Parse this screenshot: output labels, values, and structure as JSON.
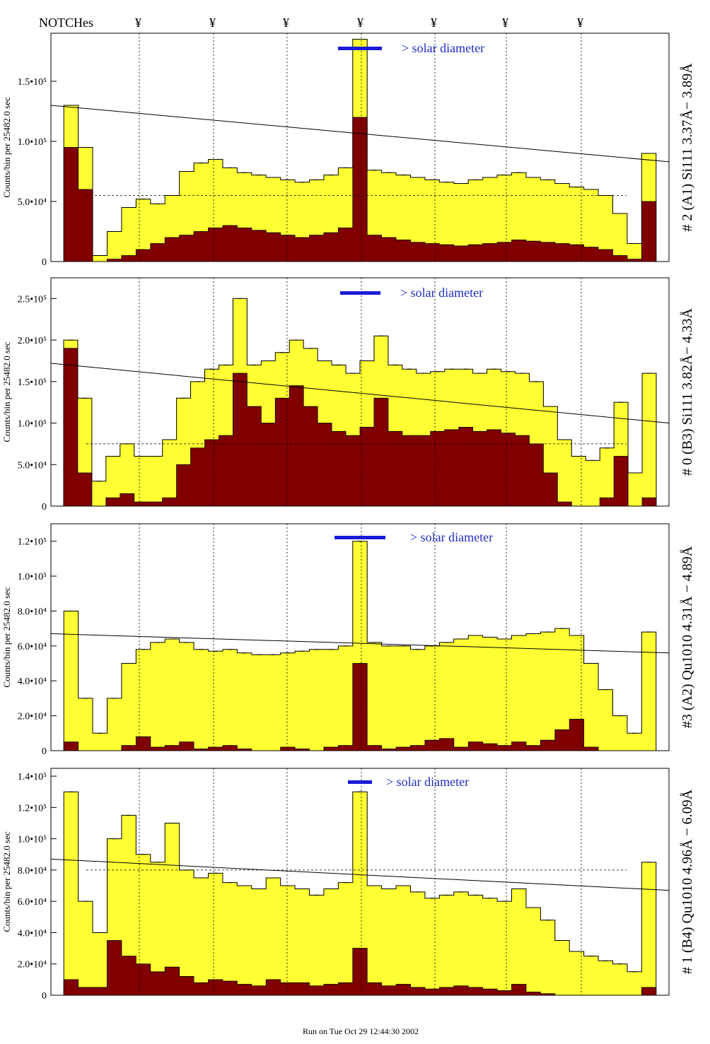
{
  "header": {
    "notch_label": "NOTCHes",
    "notch_symbol": "¥"
  },
  "footer": {
    "run_text": "Run on Tue Oct 29 12:44:30 2002"
  },
  "colors": {
    "fill": "#ffff33",
    "dark": "#800000",
    "blue": "#1a1adc"
  },
  "chart_data": [
    {
      "type": "area",
      "title": "# 2 (A1) Si111  3.37Å− 3.89Å",
      "ylabel": "Counts/bin per  25482.0 sec",
      "legend_text": "> solar diameter",
      "ylim": [
        0,
        190000
      ],
      "yticks": [
        0,
        50000,
        100000,
        150000
      ],
      "ytick_labels": [
        "0",
        "5.0•10⁴",
        "1.0•10⁵",
        "1.5•10⁵"
      ],
      "ref_line": [
        130000,
        83000
      ],
      "dashed_level": 55000,
      "series": [
        {
          "name": "total",
          "values": [
            0,
            130000,
            95000,
            5000,
            25000,
            45000,
            52000,
            48000,
            55000,
            75000,
            82000,
            85000,
            78000,
            74000,
            72000,
            70000,
            68000,
            66000,
            68000,
            72000,
            78000,
            185000,
            76000,
            74000,
            72000,
            70000,
            68000,
            66000,
            65000,
            68000,
            70000,
            72000,
            74000,
            70000,
            68000,
            65000,
            62000,
            60000,
            55000,
            40000,
            15000,
            90000,
            0
          ]
        },
        {
          "name": "masked",
          "values": [
            0,
            95000,
            60000,
            0,
            2000,
            5000,
            10000,
            15000,
            20000,
            22000,
            25000,
            28000,
            30000,
            28000,
            26000,
            24000,
            22000,
            20000,
            22000,
            24000,
            28000,
            120000,
            22000,
            20000,
            18000,
            16000,
            15000,
            14000,
            13000,
            14000,
            15000,
            16000,
            18000,
            17000,
            16000,
            15000,
            14000,
            12000,
            10000,
            5000,
            2000,
            50000,
            0
          ]
        }
      ]
    },
    {
      "type": "area",
      "title": "# 0 (B3) Si111  3.82Å− 4.33Å",
      "ylabel": "Counts/bin per  25482.0 sec",
      "legend_text": "> solar diameter",
      "ylim": [
        0,
        275000
      ],
      "yticks": [
        0,
        50000,
        100000,
        150000,
        200000,
        250000
      ],
      "ytick_labels": [
        "0",
        "5.0•10⁴",
        "1.0•10⁵",
        "1.5•10⁵",
        "2.0•10⁵",
        "2.5•10⁵"
      ],
      "ref_line": [
        172000,
        100000
      ],
      "dashed_level": 75000,
      "series": [
        {
          "name": "total",
          "values": [
            0,
            200000,
            130000,
            30000,
            60000,
            75000,
            60000,
            60000,
            80000,
            130000,
            150000,
            165000,
            170000,
            250000,
            170000,
            175000,
            185000,
            200000,
            190000,
            175000,
            170000,
            160000,
            175000,
            205000,
            170000,
            165000,
            160000,
            162000,
            165000,
            165000,
            160000,
            165000,
            162000,
            160000,
            150000,
            120000,
            80000,
            60000,
            55000,
            70000,
            125000,
            40000,
            160000,
            0
          ]
        },
        {
          "name": "masked",
          "values": [
            0,
            190000,
            40000,
            0,
            10000,
            15000,
            5000,
            5000,
            10000,
            50000,
            70000,
            80000,
            85000,
            160000,
            120000,
            100000,
            130000,
            145000,
            120000,
            100000,
            90000,
            85000,
            95000,
            130000,
            90000,
            85000,
            85000,
            90000,
            92000,
            95000,
            90000,
            92000,
            88000,
            85000,
            75000,
            40000,
            5000,
            0,
            0,
            10000,
            60000,
            0,
            10000,
            0
          ]
        }
      ]
    },
    {
      "type": "area",
      "title": "#3 (A2) Qu1010  4.31Å − 4.89Å",
      "ylabel": "Counts/bin per  25482.0 sec",
      "legend_text": "> solar diameter",
      "ylim": [
        0,
        130000
      ],
      "yticks": [
        0,
        20000,
        40000,
        60000,
        80000,
        100000,
        120000
      ],
      "ytick_labels": [
        "0",
        "2.0•10⁴",
        "4.0•10⁴",
        "6.0•10⁴",
        "8.0•10⁴",
        "1.0•10⁵",
        "1.2•10⁵"
      ],
      "ref_line": [
        67000,
        56000
      ],
      "dashed_level": 0,
      "series": [
        {
          "name": "total",
          "values": [
            0,
            80000,
            30000,
            10000,
            30000,
            50000,
            58000,
            62000,
            64000,
            62000,
            58000,
            57000,
            58000,
            56000,
            55000,
            55000,
            56000,
            57000,
            58000,
            58000,
            60000,
            120000,
            62000,
            60000,
            60000,
            58000,
            60000,
            62000,
            64000,
            66000,
            65000,
            64000,
            66000,
            67000,
            68000,
            70000,
            66000,
            50000,
            35000,
            20000,
            10000,
            68000,
            0
          ]
        },
        {
          "name": "masked",
          "values": [
            0,
            5000,
            0,
            0,
            0,
            3000,
            8000,
            2000,
            3000,
            5000,
            1000,
            2000,
            3000,
            1000,
            0,
            0,
            2000,
            1000,
            0,
            2000,
            3000,
            50000,
            3000,
            1000,
            2000,
            3000,
            6000,
            7000,
            2000,
            5000,
            4000,
            3000,
            5000,
            3000,
            6000,
            12000,
            18000,
            2000,
            0,
            0,
            0,
            0,
            0
          ]
        }
      ]
    },
    {
      "type": "area",
      "title": "# 1 (B4) Qu1010 4.96Å − 6.09Å",
      "ylabel": "Counts/bin per  25482.0 sec",
      "legend_text": "> solar diameter",
      "ylim": [
        0,
        145000
      ],
      "yticks": [
        0,
        20000,
        40000,
        60000,
        80000,
        100000,
        120000,
        140000
      ],
      "ytick_labels": [
        "0",
        "2.0•10⁴",
        "4.0•10⁴",
        "6.0•10⁴",
        "8.0•10⁴",
        "1.0•10⁵",
        "1.2•10⁵",
        "1.4•10⁵"
      ],
      "ref_line": [
        87000,
        67000
      ],
      "dashed_level": 80000,
      "series": [
        {
          "name": "total",
          "values": [
            0,
            130000,
            60000,
            40000,
            100000,
            115000,
            90000,
            85000,
            110000,
            80000,
            75000,
            78000,
            72000,
            70000,
            68000,
            75000,
            70000,
            68000,
            64000,
            68000,
            72000,
            130000,
            70000,
            68000,
            70000,
            66000,
            62000,
            64000,
            66000,
            64000,
            62000,
            60000,
            68000,
            56000,
            48000,
            35000,
            28000,
            25000,
            22000,
            20000,
            15000,
            85000,
            0
          ]
        },
        {
          "name": "masked",
          "values": [
            0,
            10000,
            5000,
            5000,
            35000,
            25000,
            20000,
            15000,
            18000,
            12000,
            8000,
            10000,
            9000,
            7000,
            6000,
            10000,
            8000,
            8000,
            6000,
            7000,
            8000,
            30000,
            8000,
            6000,
            7000,
            5000,
            4000,
            5000,
            6000,
            5000,
            4000,
            3000,
            7000,
            2000,
            1000,
            0,
            0,
            0,
            0,
            0,
            0,
            5000,
            0
          ]
        }
      ]
    }
  ]
}
